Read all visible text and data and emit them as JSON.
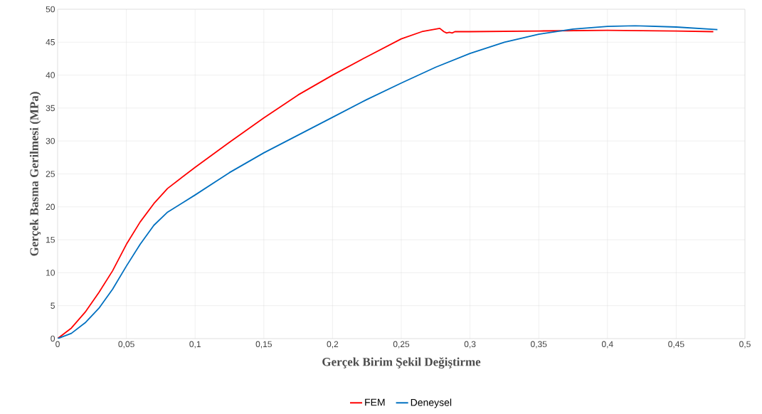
{
  "chart_data": {
    "type": "line",
    "xlabel": "Gerçek Birim Şekil Değiştirme",
    "ylabel": "Gerçek Basma  Gerilmesi (MPa)",
    "series": [
      {
        "name": "FEM",
        "color": "#ff0000",
        "x": [
          0,
          0.01,
          0.02,
          0.03,
          0.04,
          0.05,
          0.06,
          0.07,
          0.08,
          0.1,
          0.125,
          0.15,
          0.175,
          0.2,
          0.225,
          0.25,
          0.265,
          0.278,
          0.281,
          0.283,
          0.285,
          0.287,
          0.289,
          0.3,
          0.35,
          0.4,
          0.45,
          0.477
        ],
        "values": [
          0,
          1.6,
          4,
          7,
          10.3,
          14.3,
          17.7,
          20.5,
          22.8,
          26,
          29.8,
          33.5,
          37,
          40,
          42.8,
          45.5,
          46.6,
          47.1,
          46.6,
          46.4,
          46.5,
          46.4,
          46.6,
          46.6,
          46.7,
          46.8,
          46.7,
          46.6
        ]
      },
      {
        "name": "Deneysel",
        "color": "#0070c0",
        "x": [
          0,
          0.01,
          0.02,
          0.03,
          0.04,
          0.05,
          0.06,
          0.07,
          0.08,
          0.1,
          0.125,
          0.15,
          0.175,
          0.2,
          0.225,
          0.25,
          0.275,
          0.3,
          0.325,
          0.35,
          0.375,
          0.4,
          0.42,
          0.45,
          0.48
        ],
        "values": [
          0,
          0.8,
          2.4,
          4.6,
          7.5,
          11,
          14.3,
          17.2,
          19.2,
          21.8,
          25.2,
          28.2,
          30.9,
          33.6,
          36.3,
          38.8,
          41.2,
          43.3,
          45,
          46.2,
          47,
          47.4,
          47.5,
          47.3,
          46.9
        ]
      }
    ],
    "xlim": [
      0,
      0.5
    ],
    "ylim": [
      0,
      50
    ],
    "xticks": [
      0,
      {
        "value": 0.05,
        "label": "0,05"
      },
      {
        "value": 0.1,
        "label": "0,1"
      },
      {
        "value": 0.15,
        "label": "0,15"
      },
      {
        "value": 0.2,
        "label": "0,2"
      },
      {
        "value": 0.25,
        "label": "0,25"
      },
      {
        "value": 0.3,
        "label": "0,3"
      },
      {
        "value": 0.35,
        "label": "0,35"
      },
      {
        "value": 0.4,
        "label": "0,4"
      },
      {
        "value": 0.45,
        "label": "0,45"
      },
      {
        "value": 0.5,
        "label": "0,5"
      }
    ],
    "yticks": [
      0,
      5,
      10,
      15,
      20,
      25,
      30,
      35,
      40,
      45,
      50
    ],
    "grid": true,
    "legend": "bottom",
    "marker": "none",
    "line_style": "solid"
  }
}
